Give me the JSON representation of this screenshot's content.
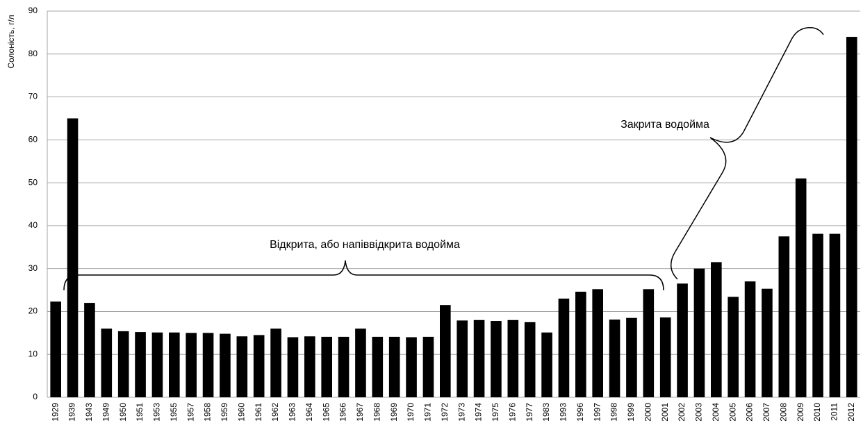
{
  "chart_data": {
    "type": "bar",
    "y_label": "Солоність, г/л",
    "annotations": [
      "Відкрита, або напіввідкрита водойма",
      "Закрита водойма"
    ],
    "categories": [
      "1929",
      "1939",
      "1943",
      "1949",
      "1950",
      "1951",
      "1953",
      "1955",
      "1957",
      "1958",
      "1959",
      "1960",
      "1961",
      "1962",
      "1963",
      "1964",
      "1965",
      "1966",
      "1967",
      "1968",
      "1969",
      "1970",
      "1971",
      "1972",
      "1973",
      "1974",
      "1975",
      "1976",
      "1977",
      "1983",
      "1993",
      "1996",
      "1997",
      "1998",
      "1999",
      "2000",
      "2001",
      "2002",
      "2003",
      "2004",
      "2005",
      "2006",
      "2007",
      "2008",
      "2009",
      "2010",
      "2011",
      "2012"
    ],
    "values": [
      22.3,
      65,
      22,
      16,
      15.4,
      15.2,
      15.1,
      15.1,
      15,
      15,
      14.8,
      14.2,
      14.5,
      16,
      14,
      14.2,
      14.1,
      14.1,
      16,
      14.1,
      14.1,
      14,
      14.1,
      21.5,
      17.9,
      18,
      17.8,
      18,
      17.5,
      15.1,
      23,
      24.6,
      25.2,
      18.1,
      18.5,
      25.2,
      18.6,
      26.5,
      30,
      31.5,
      23.4,
      27,
      25.3,
      37.5,
      51,
      38.1,
      38.1,
      84
    ],
    "color": "#000000",
    "ylim": [
      0,
      90
    ],
    "yticks": [
      0,
      10,
      20,
      30,
      40,
      50,
      60,
      70,
      80,
      90
    ],
    "grid": true
  }
}
